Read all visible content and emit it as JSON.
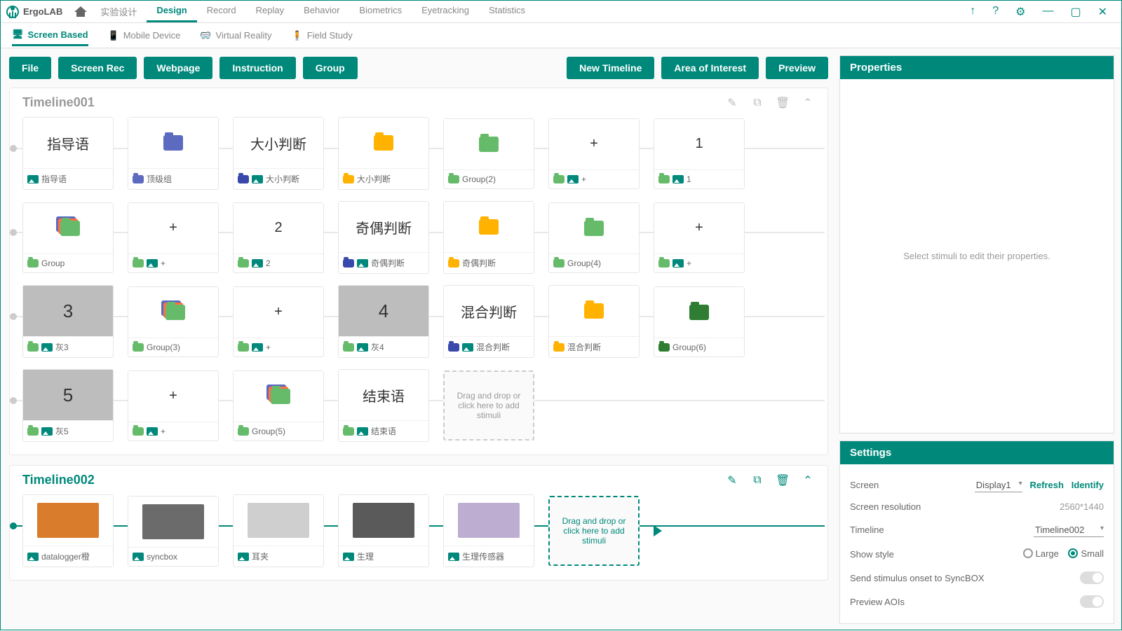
{
  "app": {
    "name": "ErgoLAB"
  },
  "menu": {
    "items": [
      "实验设计",
      "Design",
      "Record",
      "Replay",
      "Behavior",
      "Biometrics",
      "Eyetracking",
      "Statistics"
    ],
    "active": 1
  },
  "win_icons": [
    "↑",
    "?",
    "⚙",
    "—",
    "▢",
    "✕"
  ],
  "subtabs": {
    "items": [
      "Screen Based",
      "Mobile Device",
      "Virtual Reality",
      "Field Study"
    ],
    "active": 0
  },
  "toolbar": {
    "left": [
      "File",
      "Screen Rec",
      "Webpage",
      "Instruction",
      "Group"
    ],
    "right": [
      "New Timeline",
      "Area of Interest",
      "Preview"
    ]
  },
  "drop_text": "Drag and drop or click here to add stimuli",
  "timelines": [
    {
      "id": "t1",
      "title": "Timeline001",
      "selected": false,
      "rows": [
        [
          {
            "type": "text",
            "top": "指导语",
            "label": "指导语",
            "icons": [
              "img"
            ]
          },
          {
            "type": "folder",
            "color": "purple",
            "label": "顶级组",
            "icons": [
              "folder-purple"
            ]
          },
          {
            "type": "text",
            "top": "大小判断",
            "label": "大小判断",
            "icons": [
              "folder-blue",
              "img"
            ]
          },
          {
            "type": "folder",
            "color": "orange",
            "label": "大小判断",
            "icons": [
              "folder-orange"
            ]
          },
          {
            "type": "folder",
            "color": "green",
            "label": "Group(2)",
            "icons": [
              "folder-green"
            ]
          },
          {
            "type": "text",
            "top": "+",
            "label": "+",
            "icons": [
              "folder-green",
              "img"
            ]
          },
          {
            "type": "text",
            "top": "1",
            "label": "1",
            "icons": [
              "folder-green",
              "img"
            ]
          }
        ],
        [
          {
            "type": "folder",
            "color": "green",
            "stack": true,
            "label": "Group",
            "icons": [
              "folder-green"
            ]
          },
          {
            "type": "text",
            "top": "+",
            "label": "+",
            "icons": [
              "folder-green",
              "img"
            ]
          },
          {
            "type": "text",
            "top": "2",
            "label": "2",
            "icons": [
              "folder-green",
              "img"
            ]
          },
          {
            "type": "text",
            "top": "奇偶判断",
            "label": "奇偶判断",
            "icons": [
              "folder-blue",
              "img"
            ]
          },
          {
            "type": "folder",
            "color": "orange",
            "label": "奇偶判断",
            "icons": [
              "folder-orange"
            ]
          },
          {
            "type": "folder",
            "color": "green",
            "label": "Group(4)",
            "icons": [
              "folder-green"
            ]
          },
          {
            "type": "text",
            "top": "+",
            "label": "+",
            "icons": [
              "folder-green",
              "img"
            ]
          }
        ],
        [
          {
            "type": "grey",
            "top": "3",
            "label": "灰3",
            "icons": [
              "folder-green",
              "img"
            ]
          },
          {
            "type": "folder",
            "color": "green",
            "stack": true,
            "label": "Group(3)",
            "icons": [
              "folder-green"
            ]
          },
          {
            "type": "text",
            "top": "+",
            "label": "+",
            "icons": [
              "folder-green",
              "img"
            ]
          },
          {
            "type": "grey",
            "top": "4",
            "label": "灰4",
            "icons": [
              "folder-green",
              "img"
            ]
          },
          {
            "type": "text",
            "top": "混合判断",
            "label": "混合判断",
            "icons": [
              "folder-blue",
              "img"
            ]
          },
          {
            "type": "folder",
            "color": "orange",
            "label": "混合判断",
            "icons": [
              "folder-orange"
            ]
          },
          {
            "type": "folder",
            "color": "dgreen",
            "label": "Group(6)",
            "icons": [
              "folder-dgreen"
            ]
          }
        ],
        [
          {
            "type": "grey",
            "top": "5",
            "label": "灰5",
            "icons": [
              "folder-green",
              "img"
            ]
          },
          {
            "type": "text",
            "top": "+",
            "label": "+",
            "icons": [
              "folder-green",
              "img"
            ]
          },
          {
            "type": "folder",
            "color": "green",
            "stack": true,
            "label": "Group(5)",
            "icons": [
              "folder-green"
            ]
          },
          {
            "type": "text",
            "top": "结束语",
            "label": "结束语",
            "icons": [
              "folder-green",
              "img"
            ]
          },
          {
            "type": "drop"
          }
        ]
      ]
    },
    {
      "id": "t2",
      "title": "Timeline002",
      "selected": true,
      "rows": [
        [
          {
            "type": "thumb",
            "thumb": "#d97c2b",
            "label": "datalogger橙",
            "icons": [
              "img"
            ]
          },
          {
            "type": "thumb",
            "thumb": "#6b6b6b",
            "label": "syncbox",
            "icons": [
              "img"
            ]
          },
          {
            "type": "thumb",
            "thumb": "#cfcfcf",
            "label": "耳夹",
            "icons": [
              "img"
            ]
          },
          {
            "type": "thumb",
            "thumb": "#5a5a5a",
            "label": "生理",
            "icons": [
              "img"
            ]
          },
          {
            "type": "thumb",
            "thumb": "#bdaed1",
            "label": "生理传感器",
            "icons": [
              "img"
            ]
          },
          {
            "type": "drop"
          },
          {
            "type": "arrow"
          }
        ]
      ]
    }
  ],
  "properties": {
    "title": "Properties",
    "placeholder": "Select stimuli to edit their properties."
  },
  "settings": {
    "title": "Settings",
    "screen_lbl": "Screen",
    "screen_val": "Display1",
    "refresh": "Refresh",
    "identify": "Identify",
    "res_lbl": "Screen resolution",
    "res_val": "2560*1440",
    "timeline_lbl": "Timeline",
    "timeline_val": "Timeline002",
    "style_lbl": "Show style",
    "large": "Large",
    "small": "Small",
    "style_sel": "small",
    "sync_lbl": "Send stimulus onset to SyncBOX",
    "aoi_lbl": "Preview AOIs"
  },
  "colors": {
    "accent": "#00897b"
  }
}
